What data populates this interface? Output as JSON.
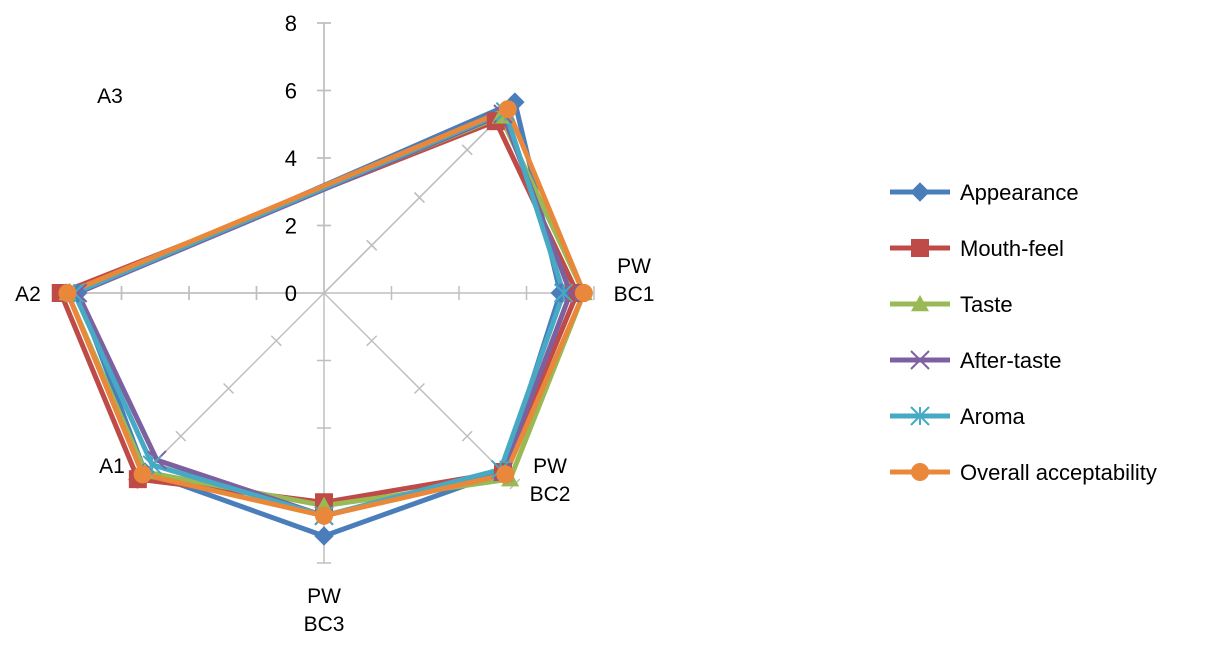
{
  "chart_data": {
    "type": "radar",
    "axis_range": [
      0,
      8
    ],
    "tick_labels": [
      "0",
      "2",
      "4",
      "6",
      "8"
    ],
    "categories": [
      {
        "label_lines": [
          "PW",
          "BC1"
        ]
      },
      {
        "label_lines": [
          "PW",
          "BC2"
        ]
      },
      {
        "label_lines": [
          "PW",
          "BC3"
        ]
      },
      {
        "label_lines": [
          "A1"
        ]
      },
      {
        "label_lines": [
          "A2"
        ]
      },
      {
        "label_lines": [
          "A3"
        ]
      }
    ],
    "legend_position": "right",
    "series": [
      {
        "name": "Appearance",
        "color": "#4a7ebb",
        "marker": "diamond",
        "values": [
          8.0,
          7.0,
          7.5,
          7.2,
          7.5,
          7.3
        ]
      },
      {
        "name": "Mouth-feel",
        "color": "#be4b48",
        "marker": "square",
        "values": [
          7.2,
          7.5,
          7.5,
          6.2,
          7.8,
          7.8
        ]
      },
      {
        "name": "Taste",
        "color": "#98b954",
        "marker": "triangle",
        "values": [
          7.4,
          7.7,
          7.8,
          6.3,
          7.5,
          7.6
        ]
      },
      {
        "name": "After-taste",
        "color": "#7d60a0",
        "marker": "x",
        "values": [
          7.5,
          7.3,
          7.5,
          6.6,
          7.0,
          7.3
        ]
      },
      {
        "name": "Aroma",
        "color": "#46aac5",
        "marker": "asterisk",
        "values": [
          7.6,
          7.1,
          7.4,
          6.6,
          7.2,
          7.4
        ]
      },
      {
        "name": "Overall acceptability",
        "color": "#e9883a",
        "marker": "circle",
        "values": [
          7.7,
          7.7,
          7.6,
          6.6,
          7.6,
          7.6
        ]
      }
    ]
  }
}
